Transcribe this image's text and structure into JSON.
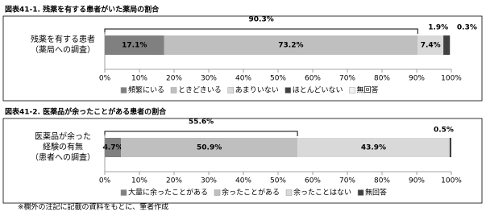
{
  "chart_data": [
    {
      "type": "bar",
      "orientation": "horizontal",
      "stacked": true,
      "title": "図表41-1. 残薬を有する患者がいた薬局の割合",
      "categories": [
        "残薬を有する患者\n（薬局への調査）"
      ],
      "series": [
        {
          "name": "頻繁にいる",
          "color": "#808080",
          "values": [
            17.1
          ],
          "value_labels": [
            "17.1%"
          ]
        },
        {
          "name": "ときどきいる",
          "color": "#bfbfbf",
          "values": [
            73.2
          ],
          "value_labels": [
            "73.2%"
          ]
        },
        {
          "name": "あまりいない",
          "color": "#d9d9d9",
          "values": [
            7.4
          ],
          "value_labels": [
            "7.4%"
          ]
        },
        {
          "name": "ほとんどいない",
          "color": "#404040",
          "values": [
            1.9
          ],
          "value_labels": [
            "1.9%"
          ]
        },
        {
          "name": "無回答",
          "color": "#f2f2f2",
          "values": [
            0.3
          ],
          "value_labels": [
            "0.3%"
          ]
        }
      ],
      "annotations": [
        {
          "label": "90.3%",
          "value": 90.3
        }
      ],
      "xlim": [
        0,
        100
      ],
      "xticks": [
        {
          "value": 0,
          "label": "0%"
        },
        {
          "value": 10,
          "label": "10%"
        },
        {
          "value": 20,
          "label": "20%"
        },
        {
          "value": 30,
          "label": "30%"
        },
        {
          "value": 40,
          "label": "40%"
        },
        {
          "value": 50,
          "label": "50%"
        },
        {
          "value": 60,
          "label": "60%"
        },
        {
          "value": 70,
          "label": "70%"
        },
        {
          "value": 80,
          "label": "80%"
        },
        {
          "value": 90,
          "label": "90%"
        },
        {
          "value": 100,
          "label": "100%"
        }
      ],
      "legend": "bottom"
    },
    {
      "type": "bar",
      "orientation": "horizontal",
      "stacked": true,
      "title": "図表41-2. 医薬品が余ったことがある患者の割合",
      "categories": [
        "医薬品が余った\n経験の有無\n（患者への調査）"
      ],
      "series": [
        {
          "name": "大量に余ったことがある",
          "color": "#808080",
          "values": [
            4.7
          ],
          "value_labels": [
            "4.7%"
          ]
        },
        {
          "name": "余ったことがある",
          "color": "#bfbfbf",
          "values": [
            50.9
          ],
          "value_labels": [
            "50.9%"
          ]
        },
        {
          "name": "余ったことはない",
          "color": "#d9d9d9",
          "values": [
            43.9
          ],
          "value_labels": [
            "43.9%"
          ]
        },
        {
          "name": "無回答",
          "color": "#404040",
          "values": [
            0.5
          ],
          "value_labels": [
            "0.5%"
          ]
        }
      ],
      "annotations": [
        {
          "label": "55.6%",
          "value": 55.6
        }
      ],
      "xlim": [
        0,
        100
      ],
      "xticks": [
        {
          "value": 0,
          "label": "0%"
        },
        {
          "value": 10,
          "label": "10%"
        },
        {
          "value": 20,
          "label": "20%"
        },
        {
          "value": 30,
          "label": "30%"
        },
        {
          "value": 40,
          "label": "40%"
        },
        {
          "value": 50,
          "label": "50%"
        },
        {
          "value": 60,
          "label": "60%"
        },
        {
          "value": 70,
          "label": "70%"
        },
        {
          "value": 80,
          "label": "80%"
        },
        {
          "value": 90,
          "label": "90%"
        },
        {
          "value": 100,
          "label": "100%"
        }
      ],
      "legend": "bottom"
    }
  ],
  "footnote": "※欄外の注記に記載の資料をもとに、筆者作成"
}
